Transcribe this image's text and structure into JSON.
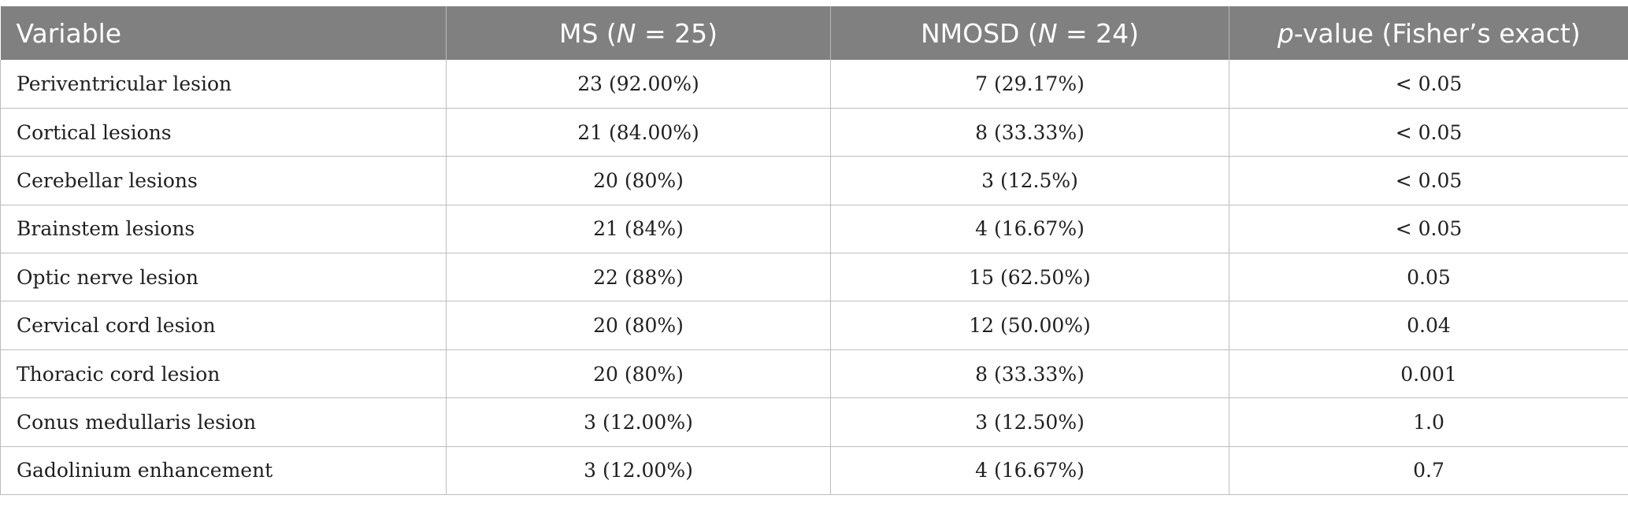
{
  "table": {
    "headers": {
      "variable": "Variable",
      "ms_prefix": "MS (",
      "ms_n": "N",
      "ms_suffix": " = 25)",
      "nmosd_prefix": "NMOSD (",
      "nmosd_n": "N",
      "nmosd_suffix": " = 24)",
      "p_italic": "p",
      "p_rest": "-value (Fisher’s exact)"
    },
    "rows": [
      {
        "variable": "Periventricular lesion",
        "ms": "23 (92.00%)",
        "nmosd": "7 (29.17%)",
        "p": "< 0.05"
      },
      {
        "variable": "Cortical lesions",
        "ms": "21 (84.00%)",
        "nmosd": "8 (33.33%)",
        "p": "< 0.05"
      },
      {
        "variable": "Cerebellar lesions",
        "ms": "20 (80%)",
        "nmosd": "3 (12.5%)",
        "p": "< 0.05"
      },
      {
        "variable": "Brainstem lesions",
        "ms": "21 (84%)",
        "nmosd": "4 (16.67%)",
        "p": "< 0.05"
      },
      {
        "variable": "Optic nerve lesion",
        "ms": "22 (88%)",
        "nmosd": "15 (62.50%)",
        "p": "0.05"
      },
      {
        "variable": "Cervical cord lesion",
        "ms": "20 (80%)",
        "nmosd": "12 (50.00%)",
        "p": "0.04"
      },
      {
        "variable": "Thoracic cord lesion",
        "ms": "20 (80%)",
        "nmosd": "8 (33.33%)",
        "p": "0.001"
      },
      {
        "variable": "Conus medullaris lesion",
        "ms": "3 (12.00%)",
        "nmosd": "3 (12.50%)",
        "p": "1.0"
      },
      {
        "variable": "Gadolinium enhancement",
        "ms": "3 (12.00%)",
        "nmosd": "4 (16.67%)",
        "p": "0.7"
      }
    ]
  }
}
